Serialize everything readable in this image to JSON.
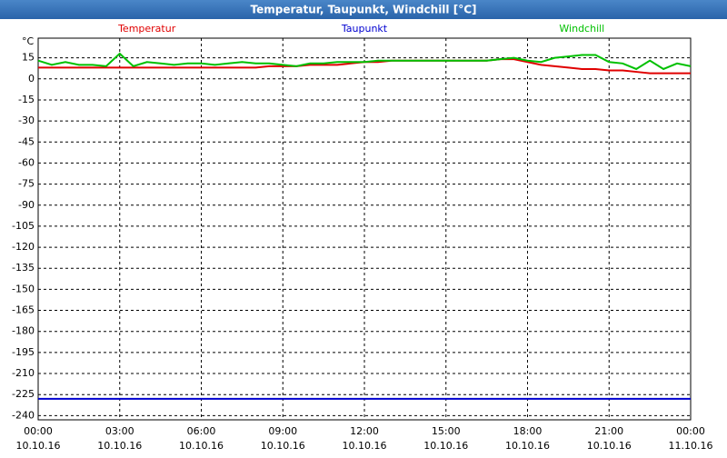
{
  "chart_data": {
    "type": "line",
    "title": "Temperatur, Taupunkt, Windchill [°C]",
    "y_unit_label": "°C",
    "x": [
      0,
      0.5,
      1,
      1.5,
      2,
      2.5,
      3,
      3.5,
      4,
      4.5,
      5,
      5.5,
      6,
      6.5,
      7,
      7.5,
      8,
      8.5,
      9,
      9.5,
      10,
      10.5,
      11,
      11.5,
      12,
      12.5,
      13,
      13.5,
      14,
      14.5,
      15,
      15.5,
      16,
      16.5,
      17,
      17.5,
      18,
      18.5,
      19,
      19.5,
      20,
      20.5,
      21,
      21.5,
      22,
      22.5,
      23,
      23.5,
      24
    ],
    "series": [
      {
        "name": "Temperatur",
        "color": "#e00000",
        "values": [
          8,
          8,
          8,
          8,
          8,
          8,
          8,
          8,
          8,
          8,
          8,
          8,
          8,
          8,
          8,
          8,
          8,
          9,
          9,
          9,
          10,
          10,
          10,
          11,
          12,
          12,
          13,
          13,
          13,
          13,
          13,
          13,
          13,
          13,
          14,
          14,
          12,
          10,
          9,
          8,
          7,
          7,
          6,
          6,
          5,
          4,
          4,
          4,
          4
        ]
      },
      {
        "name": "Taupunkt",
        "color": "#0000d0",
        "values": [
          -228,
          -228,
          -228,
          -228,
          -228,
          -228,
          -228,
          -228,
          -228,
          -228,
          -228,
          -228,
          -228,
          -228,
          -228,
          -228,
          -228,
          -228,
          -228,
          -228,
          -228,
          -228,
          -228,
          -228,
          -228,
          -228,
          -228,
          -228,
          -228,
          -228,
          -228,
          -228,
          -228,
          -228,
          -228,
          -228,
          -228,
          -228,
          -228,
          -228,
          -228,
          -228,
          -228,
          -228,
          -228,
          -228,
          -228,
          -228,
          -228
        ]
      },
      {
        "name": "Windchill",
        "color": "#00c000",
        "values": [
          13,
          10,
          12,
          10,
          10,
          9,
          18,
          9,
          12,
          11,
          10,
          11,
          11,
          10,
          11,
          12,
          11,
          11,
          10,
          9,
          11,
          11,
          12,
          12,
          12,
          13,
          13,
          13,
          13,
          13,
          13,
          13,
          13,
          13,
          14,
          15,
          13,
          12,
          15,
          16,
          17,
          17,
          12,
          11,
          7,
          13,
          7,
          11,
          9
        ]
      }
    ],
    "xlim": [
      0,
      24
    ],
    "xticks": [
      {
        "value": 0,
        "label": "00:00"
      },
      {
        "value": 3,
        "label": "03:00"
      },
      {
        "value": 6,
        "label": "06:00"
      },
      {
        "value": 9,
        "label": "09:00"
      },
      {
        "value": 12,
        "label": "12:00"
      },
      {
        "value": 15,
        "label": "15:00"
      },
      {
        "value": 18,
        "label": "18:00"
      },
      {
        "value": 21,
        "label": "21:00"
      },
      {
        "value": 24,
        "label": "00:00"
      }
    ],
    "xtick_dates": [
      "10.10.16",
      "10.10.16",
      "10.10.16",
      "10.10.16",
      "10.10.16",
      "10.10.16",
      "10.10.16",
      "10.10.16",
      "11.10.16"
    ],
    "ylim": [
      -243,
      29
    ],
    "yticks": [
      15,
      0,
      -15,
      -30,
      -45,
      -60,
      -75,
      -90,
      -105,
      -120,
      -135,
      -150,
      -165,
      -180,
      -195,
      -210,
      -225,
      -240
    ],
    "grid": true
  }
}
